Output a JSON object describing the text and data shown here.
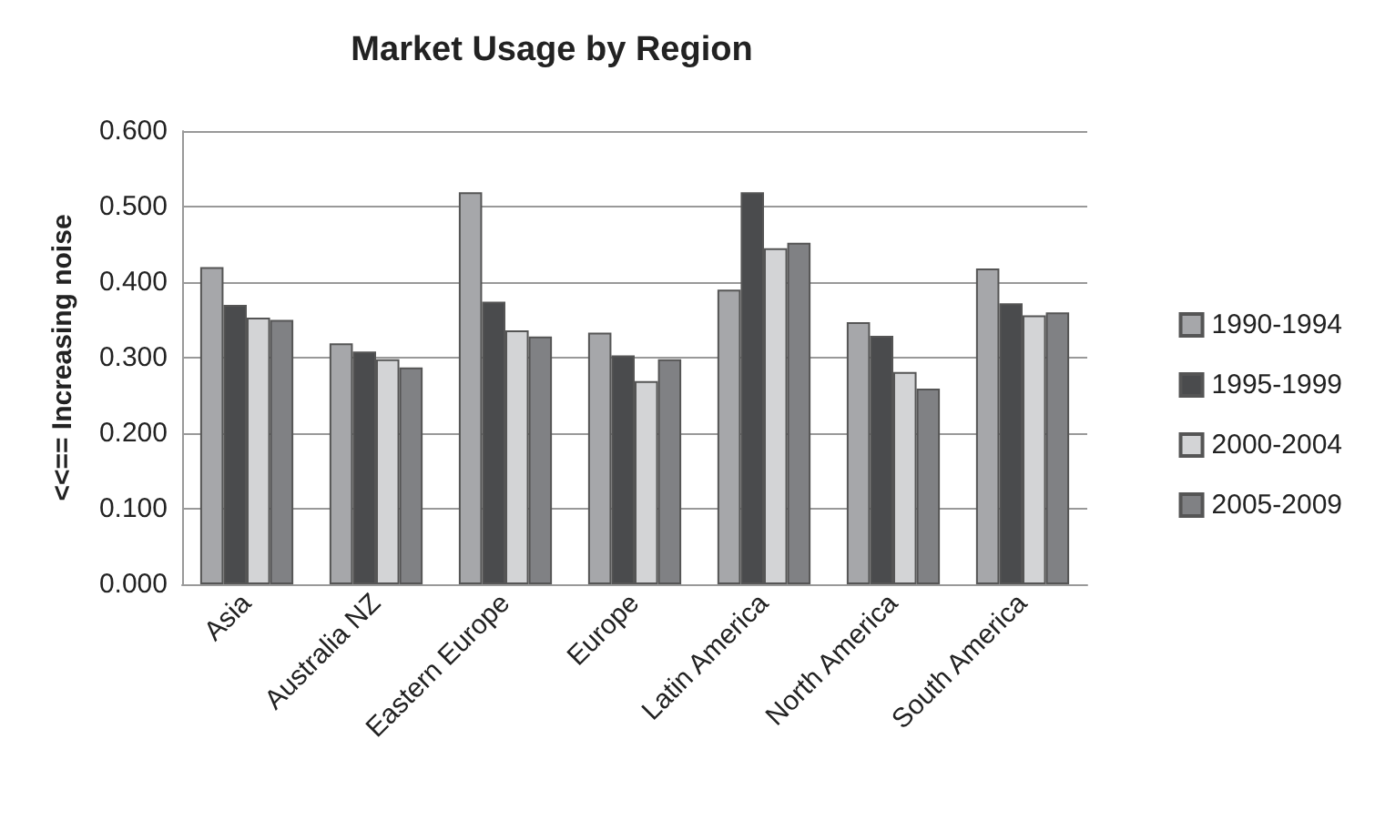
{
  "chart_data": {
    "type": "bar",
    "title": "Market Usage by Region",
    "ylabel": "<<== Increasing noise",
    "categories": [
      "Asia",
      "Australia NZ",
      "Eastern Europe",
      "Europe",
      "Latin America",
      "North America",
      "South America"
    ],
    "series": [
      {
        "name": "1990-1994",
        "color": "#a6a7aa",
        "values": [
          0.42,
          0.319,
          0.519,
          0.333,
          0.39,
          0.347,
          0.418
        ]
      },
      {
        "name": "1995-1999",
        "color": "#4a4b4d",
        "values": [
          0.37,
          0.308,
          0.374,
          0.303,
          0.519,
          0.329,
          0.372
        ]
      },
      {
        "name": "2000-2004",
        "color": "#d3d4d6",
        "values": [
          0.353,
          0.298,
          0.336,
          0.269,
          0.445,
          0.281,
          0.356
        ]
      },
      {
        "name": "2005-2009",
        "color": "#808184",
        "values": [
          0.35,
          0.287,
          0.328,
          0.298,
          0.452,
          0.259,
          0.36
        ]
      }
    ],
    "ylim": [
      0,
      0.6
    ],
    "yticks": [
      {
        "value": 0,
        "label": "0.000"
      },
      {
        "value": 0.1,
        "label": "0.100"
      },
      {
        "value": 0.2,
        "label": "0.200"
      },
      {
        "value": 0.3,
        "label": "0.300"
      },
      {
        "value": 0.4,
        "label": "0.400"
      },
      {
        "value": 0.5,
        "label": "0.500"
      },
      {
        "value": 0.6,
        "label": "0.600"
      }
    ],
    "grid": "y",
    "legend": "right"
  }
}
